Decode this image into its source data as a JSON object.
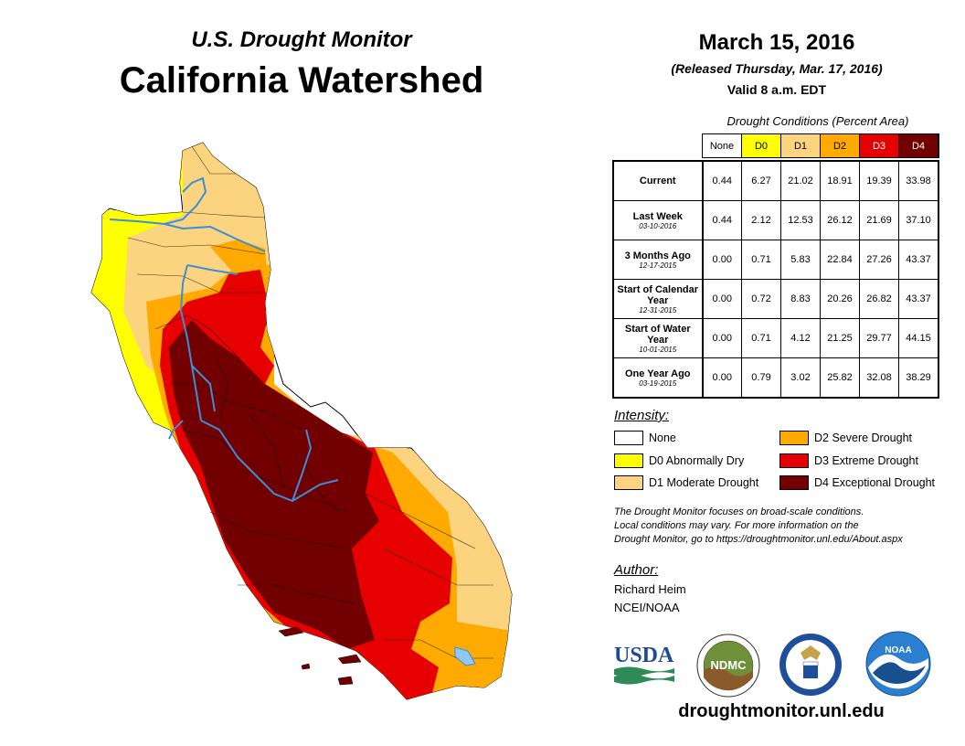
{
  "header": {
    "subtitle": "U.S. Drought Monitor",
    "title": "California Watershed",
    "date": "March 15, 2016",
    "released": "(Released Thursday, Mar. 17, 2016)",
    "valid": "Valid 8 a.m. EDT"
  },
  "table": {
    "caption": "Drought Conditions (Percent Area)",
    "columns": [
      {
        "label": "None",
        "color": "#ffffff",
        "text_color": "#000000"
      },
      {
        "label": "D0",
        "color": "#ffff00",
        "text_color": "#000000"
      },
      {
        "label": "D1",
        "color": "#fcd37f",
        "text_color": "#000000"
      },
      {
        "label": "D2",
        "color": "#ffaa00",
        "text_color": "#000000"
      },
      {
        "label": "D3",
        "color": "#e60000",
        "text_color": "#ffffff"
      },
      {
        "label": "D4",
        "color": "#730000",
        "text_color": "#ffffff"
      }
    ],
    "rows": [
      {
        "label": "Current",
        "date": "",
        "values": [
          "0.44",
          "6.27",
          "21.02",
          "18.91",
          "19.39",
          "33.98"
        ]
      },
      {
        "label": "Last Week",
        "date": "03-10-2016",
        "values": [
          "0.44",
          "2.12",
          "12.53",
          "26.12",
          "21.69",
          "37.10"
        ]
      },
      {
        "label": "3 Months Ago",
        "date": "12-17-2015",
        "values": [
          "0.00",
          "0.71",
          "5.83",
          "22.84",
          "27.26",
          "43.37"
        ]
      },
      {
        "label": "Start of Calendar Year",
        "date": "12-31-2015",
        "values": [
          "0.00",
          "0.72",
          "8.83",
          "20.26",
          "26.82",
          "43.37"
        ]
      },
      {
        "label": "Start of Water Year",
        "date": "10-01-2015",
        "values": [
          "0.00",
          "0.71",
          "4.12",
          "21.25",
          "29.77",
          "44.15"
        ]
      },
      {
        "label": "One Year Ago",
        "date": "03-19-2015",
        "values": [
          "0.00",
          "0.79",
          "3.02",
          "25.82",
          "32.08",
          "38.29"
        ]
      }
    ]
  },
  "legend": {
    "title": "Intensity:",
    "items": [
      {
        "label": "None",
        "color": "#ffffff"
      },
      {
        "label": "D0 Abnormally Dry",
        "color": "#ffff00"
      },
      {
        "label": "D1 Moderate Drought",
        "color": "#fcd37f"
      },
      {
        "label": "D2 Severe Drought",
        "color": "#ffaa00"
      },
      {
        "label": "D3 Extreme Drought",
        "color": "#e60000"
      },
      {
        "label": "D4 Exceptional Drought",
        "color": "#730000"
      }
    ]
  },
  "note": [
    "The Drought Monitor focuses on broad-scale conditions.",
    "Local conditions may vary. For more information on the",
    "Drought Monitor, go to https://droughtmonitor.unl.edu/About.aspx"
  ],
  "author": {
    "title": "Author:",
    "name": "Richard Heim",
    "org": "NCEI/NOAA"
  },
  "logos": {
    "usda": "USDA",
    "ndmc": "NDMC",
    "noaa": "NOAA"
  },
  "website": "droughtmonitor.unl.edu",
  "colors": {
    "river": "#3a8fd9",
    "border": "#000000"
  }
}
